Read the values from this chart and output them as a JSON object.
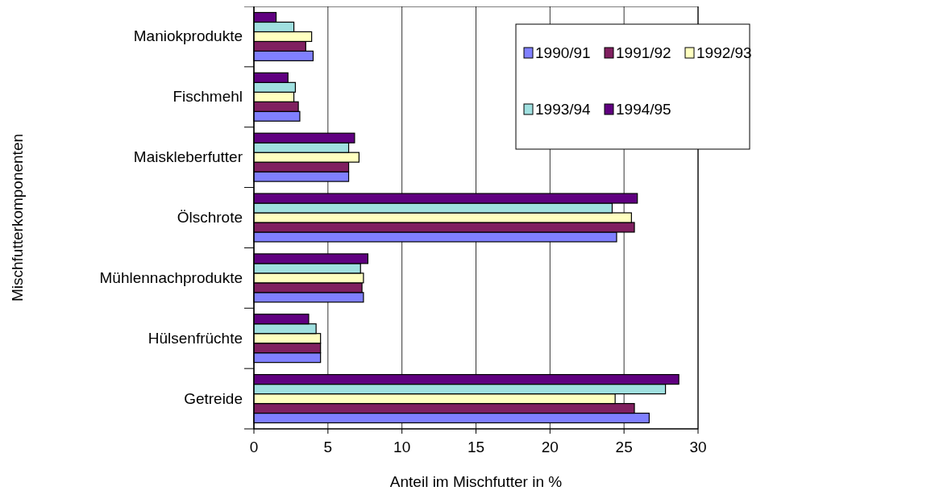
{
  "chart_data": {
    "type": "bar",
    "orientation": "horizontal",
    "xlabel": "Anteil im Mischfutter in  %",
    "ylabel": "Mischfutterkomponenten",
    "categories": [
      "Maniokprodukte",
      "Fischmehl",
      "Maiskleberfutter",
      "Ölschrote",
      "Mühlennachprodukte",
      "Hülsenfrüchte",
      "Getreide"
    ],
    "series": [
      {
        "name": "1990/91",
        "color": "#8080ff",
        "values": [
          4.0,
          3.1,
          6.4,
          24.5,
          7.4,
          4.5,
          26.7
        ]
      },
      {
        "name": "1991/92",
        "color": "#802060",
        "values": [
          3.5,
          3.0,
          6.4,
          25.7,
          7.3,
          4.5,
          25.7
        ]
      },
      {
        "name": "1992/93",
        "color": "#ffffc0",
        "values": [
          3.9,
          2.7,
          7.1,
          25.5,
          7.4,
          4.5,
          24.4
        ]
      },
      {
        "name": "1993/94",
        "color": "#a0e0e0",
        "values": [
          2.7,
          2.8,
          6.4,
          24.2,
          7.2,
          4.2,
          27.8
        ]
      },
      {
        "name": "1994/95",
        "color": "#600080",
        "values": [
          1.5,
          2.3,
          6.8,
          25.9,
          7.7,
          3.7,
          28.7
        ]
      }
    ],
    "xlim": [
      0,
      30
    ],
    "xticks": [
      0,
      5,
      10,
      15,
      20,
      25,
      30
    ],
    "grid": "x",
    "legend": "top right"
  }
}
